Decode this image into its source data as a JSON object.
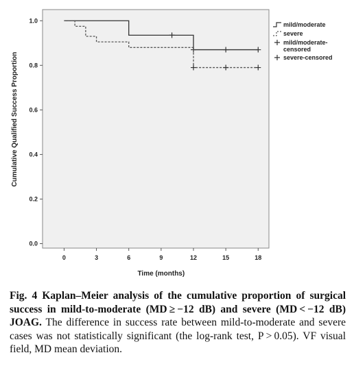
{
  "chart_data": {
    "type": "line",
    "step": true,
    "ylabel": "Cumulative Qualified Success Proportion",
    "xlabel": "Time (months)",
    "xlim": [
      -2,
      19
    ],
    "ylim": [
      -0.02,
      1.05
    ],
    "x_ticks": [
      0,
      3,
      6,
      9,
      12,
      15,
      18
    ],
    "y_ticks": [
      0.0,
      0.2,
      0.4,
      0.6,
      0.8,
      1.0
    ],
    "y_tick_labels": [
      "0.0",
      "0.2",
      "0.4",
      "0.6",
      "0.8",
      "1.0"
    ],
    "grid": false,
    "legend_position": "right",
    "series": [
      {
        "name": "mild/moderate",
        "style": "solid",
        "color": "#333333",
        "steps": [
          [
            0,
            1.0
          ],
          [
            6,
            0.935
          ],
          [
            12,
            0.87
          ],
          [
            18,
            0.87
          ]
        ],
        "censored": [
          [
            10,
            0.935
          ],
          [
            12,
            0.87
          ],
          [
            15,
            0.87
          ],
          [
            18,
            0.87
          ]
        ]
      },
      {
        "name": "severe",
        "style": "dashed",
        "color": "#555555",
        "steps": [
          [
            0,
            1.0
          ],
          [
            1,
            0.975
          ],
          [
            2,
            0.93
          ],
          [
            3,
            0.905
          ],
          [
            6,
            0.88
          ],
          [
            12,
            0.79
          ],
          [
            18,
            0.79
          ]
        ],
        "censored": [
          [
            12,
            0.79
          ],
          [
            15,
            0.79
          ],
          [
            18,
            0.79
          ]
        ]
      }
    ],
    "legend": [
      {
        "label": "mild/moderate",
        "kind": "solid"
      },
      {
        "label": "severe",
        "kind": "dashed"
      },
      {
        "label": "mild/moderate-\ncensored",
        "kind": "plus"
      },
      {
        "label": "severe-censored",
        "kind": "plus"
      }
    ]
  },
  "caption": {
    "fig_label": "Fig. 4 ",
    "bold_text": "Kaplan–Meier analysis of the cumulative proportion of surgical success in mild-to-moderate (MD ≥ −12 dB) and severe (MD < −12 dB) JOAG.",
    "normal_text": " The difference in success rate between mild-to-moderate and severe cases was not statistically significant (the log-rank test, P > 0.05). VF visual field, MD mean deviation."
  }
}
